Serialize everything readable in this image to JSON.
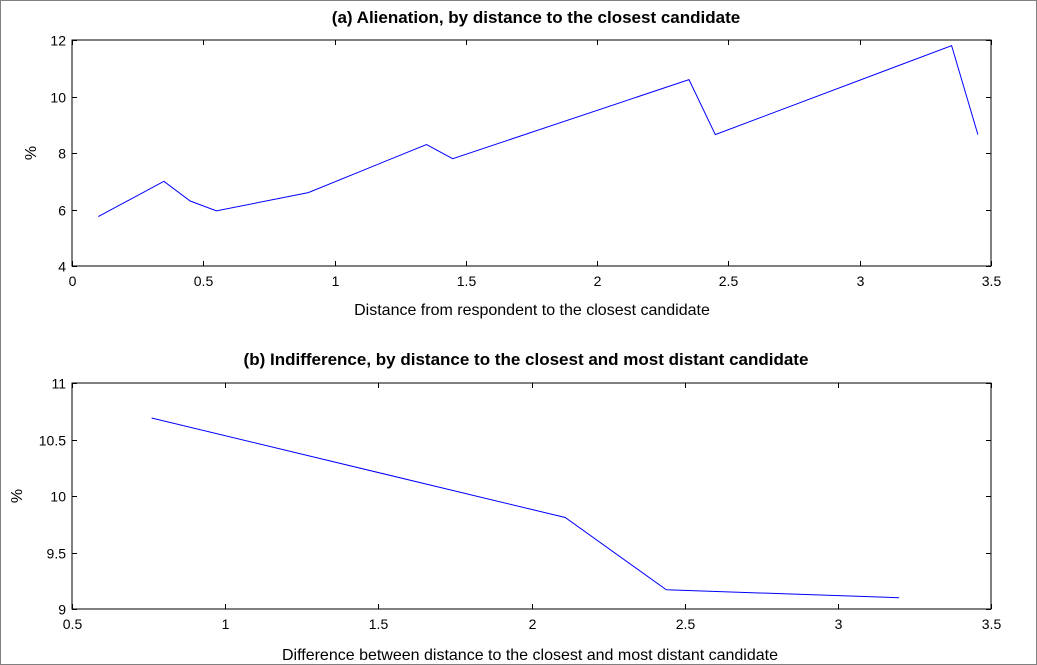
{
  "chart_data": [
    {
      "type": "line",
      "title": "(a) Alienation, by distance to the closest candidate",
      "xlabel": "Distance from respondent to the closest candidate",
      "ylabel": "%",
      "xlim": [
        0,
        3.5
      ],
      "ylim": [
        4,
        12
      ],
      "xticks": [
        0,
        0.5,
        1,
        1.5,
        2,
        2.5,
        3,
        3.5
      ],
      "xtick_labels": [
        "0",
        "0.5",
        "1",
        "1.5",
        "2",
        "2.5",
        "3",
        "3.5"
      ],
      "yticks": [
        4,
        6,
        8,
        10,
        12
      ],
      "ytick_labels": [
        "4",
        "6",
        "8",
        "10",
        "12"
      ],
      "grid": false,
      "color": "#0000ff",
      "x": [
        0.1,
        0.35,
        0.45,
        0.55,
        0.9,
        1.35,
        1.45,
        2.35,
        2.45,
        3.35,
        3.45
      ],
      "y": [
        5.75,
        7.0,
        6.3,
        5.95,
        6.6,
        8.3,
        7.8,
        10.6,
        8.65,
        11.8,
        8.65
      ]
    },
    {
      "type": "line",
      "title": "(b) Indifference, by distance to the closest and most distant candidate",
      "xlabel": "Difference between distance to the closest and most distant candidate",
      "ylabel": "%",
      "xlim": [
        0.5,
        3.5
      ],
      "ylim": [
        9,
        11
      ],
      "xticks": [
        0.5,
        1,
        1.5,
        2,
        2.5,
        3,
        3.5
      ],
      "xtick_labels": [
        "0.5",
        "1",
        "1.5",
        "2",
        "2.5",
        "3",
        "3.5"
      ],
      "yticks": [
        9,
        9.5,
        10,
        10.5,
        11
      ],
      "ytick_labels": [
        "9",
        "9.5",
        "10",
        "10.5",
        "11"
      ],
      "grid": false,
      "color": "#0000ff",
      "x": [
        0.76,
        2.11,
        2.44,
        3.2
      ],
      "y": [
        10.69,
        9.81,
        9.17,
        9.1
      ]
    }
  ]
}
